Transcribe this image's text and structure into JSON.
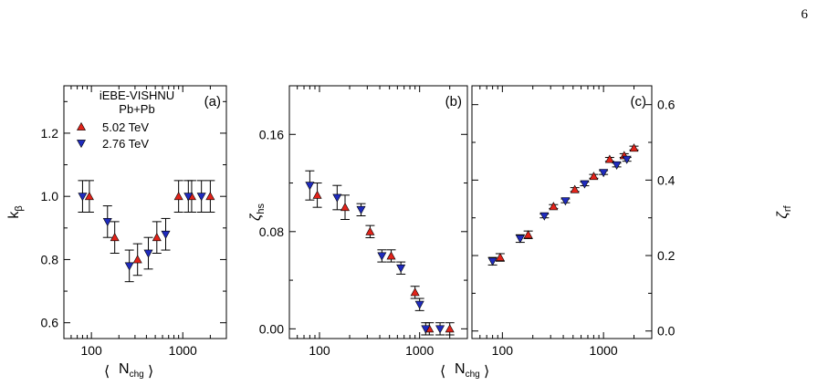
{
  "page_number": "6",
  "colors": {
    "series_502": "#e2231a",
    "series_276": "#1f2bbd",
    "marker_edge": "#000000",
    "errorbar": "#000000"
  },
  "legend": {
    "title": "iEBE-VISHNU",
    "subtitle": "Pb+Pb",
    "entries": [
      "5.02 TeV",
      "2.76 TeV"
    ]
  },
  "x_label": {
    "main": "N",
    "sub": "chg"
  },
  "chart_data": [
    {
      "type": "scatter",
      "panel_label": "(a)",
      "ylabel": "k",
      "ylabel_sub": "β",
      "xscale": "log",
      "xlim": [
        50,
        3000
      ],
      "ylim": [
        0.55,
        1.35
      ],
      "xticks": [
        100,
        1000
      ],
      "xtick_labels": [
        "100",
        "1000"
      ],
      "yticks": [
        0.6,
        0.8,
        1.0,
        1.2
      ],
      "ytick_labels": [
        "0.6",
        "0.8",
        "1.0",
        "1.2"
      ],
      "legend_position": "top-left",
      "series": [
        {
          "name": "5.02 TeV",
          "marker": "triangle-up",
          "x": [
            95,
            180,
            320,
            520,
            900,
            1250,
            2000
          ],
          "y": [
            1.0,
            0.87,
            0.8,
            0.87,
            1.0,
            1.0,
            1.0
          ],
          "err": [
            0.05,
            0.05,
            0.05,
            0.05,
            0.05,
            0.05,
            0.05
          ]
        },
        {
          "name": "2.76 TeV",
          "marker": "triangle-down",
          "x": [
            80,
            150,
            260,
            420,
            650,
            1150,
            1600
          ],
          "y": [
            1.0,
            0.92,
            0.78,
            0.82,
            0.88,
            1.0,
            1.0
          ],
          "err": [
            0.05,
            0.05,
            0.05,
            0.05,
            0.05,
            0.05,
            0.05
          ]
        }
      ]
    },
    {
      "type": "scatter",
      "panel_label": "(b)",
      "ylabel": "ζ",
      "ylabel_sub": "hs",
      "xscale": "log",
      "xlim": [
        50,
        3000
      ],
      "ylim": [
        -0.008,
        0.2
      ],
      "xticks": [
        100,
        1000
      ],
      "xtick_labels": [
        "100",
        "1000"
      ],
      "yticks": [
        0.0,
        0.08,
        0.16
      ],
      "ytick_labels": [
        "0.00",
        "0.08",
        "0.16"
      ],
      "series": [
        {
          "name": "5.02 TeV",
          "marker": "triangle-up",
          "x": [
            95,
            180,
            320,
            520,
            900,
            1250,
            2000
          ],
          "y": [
            0.11,
            0.1,
            0.08,
            0.06,
            0.03,
            0.0,
            0.0
          ],
          "err": [
            0.01,
            0.01,
            0.005,
            0.005,
            0.005,
            0.005,
            0.005
          ]
        },
        {
          "name": "2.76 TeV",
          "marker": "triangle-down",
          "x": [
            80,
            150,
            260,
            420,
            650,
            1000,
            1150,
            1600
          ],
          "y": [
            0.118,
            0.108,
            0.098,
            0.06,
            0.05,
            0.02,
            0.0,
            0.0
          ],
          "err": [
            0.012,
            0.01,
            0.005,
            0.005,
            0.005,
            0.005,
            0.005,
            0.005
          ]
        }
      ]
    },
    {
      "type": "scatter",
      "panel_label": "(c)",
      "ylabel": "ζ",
      "ylabel_sub": "rf",
      "xscale": "log",
      "xlim": [
        50,
        3000
      ],
      "ylim": [
        -0.02,
        0.65
      ],
      "xticks": [
        100,
        1000
      ],
      "xtick_labels": [
        "100",
        "1000"
      ],
      "yticks": [
        0.0,
        0.2,
        0.4,
        0.6
      ],
      "ytick_labels": [
        "0.0",
        "0.2",
        "0.4",
        "0.6"
      ],
      "yaxis_side": "right",
      "series": [
        {
          "name": "5.02 TeV",
          "marker": "triangle-up",
          "x": [
            95,
            180,
            320,
            520,
            800,
            1150,
            1600,
            2000
          ],
          "y": [
            0.195,
            0.255,
            0.33,
            0.375,
            0.41,
            0.455,
            0.465,
            0.485
          ],
          "err": [
            0.01,
            0.01,
            0.005,
            0.005,
            0.005,
            0.005,
            0.005,
            0.005
          ]
        },
        {
          "name": "2.76 TeV",
          "marker": "triangle-down",
          "x": [
            80,
            150,
            260,
            420,
            650,
            1000,
            1350,
            1700
          ],
          "y": [
            0.185,
            0.245,
            0.305,
            0.345,
            0.39,
            0.42,
            0.44,
            0.455
          ],
          "err": [
            0.01,
            0.01,
            0.005,
            0.005,
            0.005,
            0.005,
            0.005,
            0.005
          ]
        }
      ]
    }
  ]
}
